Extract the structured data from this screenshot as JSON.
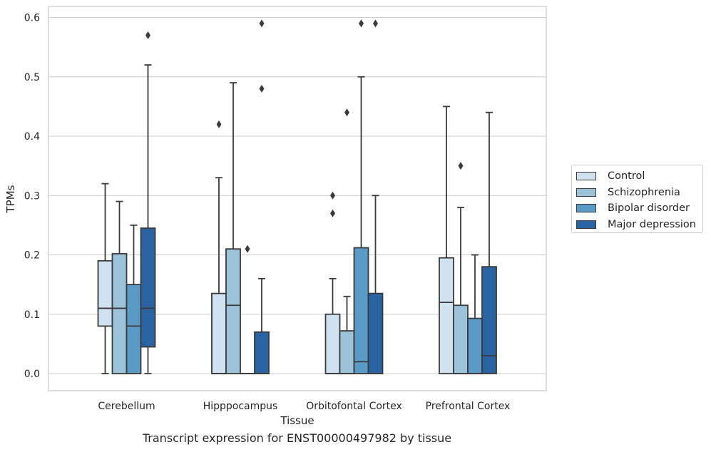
{
  "chart_data": {
    "type": "box",
    "title": "",
    "xlabel": "Tissue",
    "ylabel": "TPMs",
    "ylim": [
      -0.03,
      0.62
    ],
    "yticks": [
      "0.0",
      "0.1",
      "0.2",
      "0.3",
      "0.4",
      "0.5",
      "0.6"
    ],
    "ytick_values": [
      0.0,
      0.1,
      0.2,
      0.3,
      0.4,
      0.5,
      0.6
    ],
    "grid": true,
    "legend_position": "right",
    "categories": [
      "Cerebellum",
      "Hipppocampus",
      "Orbitofontal Cortex",
      "Prefrontal Cortex"
    ],
    "series": [
      {
        "name": "Control",
        "color": "#d0e1f0",
        "boxes": [
          {
            "q1": 0.08,
            "median": 0.11,
            "q3": 0.19,
            "whisker_low": 0.0,
            "whisker_high": 0.32,
            "outliers": []
          },
          {
            "q1": 0.0,
            "median": 0.0,
            "q3": 0.135,
            "whisker_low": 0.0,
            "whisker_high": 0.33,
            "outliers": [
              0.42
            ]
          },
          {
            "q1": 0.0,
            "median": 0.0,
            "q3": 0.1,
            "whisker_low": 0.0,
            "whisker_high": 0.16,
            "outliers": [
              0.27,
              0.3
            ]
          },
          {
            "q1": 0.0,
            "median": 0.12,
            "q3": 0.195,
            "whisker_low": 0.0,
            "whisker_high": 0.45,
            "outliers": []
          }
        ]
      },
      {
        "name": "Schizophrenia",
        "color": "#9dc3db",
        "boxes": [
          {
            "q1": 0.0,
            "median": 0.11,
            "q3": 0.202,
            "whisker_low": 0.0,
            "whisker_high": 0.29,
            "outliers": []
          },
          {
            "q1": 0.0,
            "median": 0.115,
            "q3": 0.21,
            "whisker_low": 0.0,
            "whisker_high": 0.49,
            "outliers": []
          },
          {
            "q1": 0.0,
            "median": 0.0,
            "q3": 0.072,
            "whisker_low": 0.0,
            "whisker_high": 0.13,
            "outliers": [
              0.44
            ]
          },
          {
            "q1": 0.0,
            "median": 0.0,
            "q3": 0.115,
            "whisker_low": 0.0,
            "whisker_high": 0.28,
            "outliers": [
              0.35
            ]
          }
        ]
      },
      {
        "name": "Bipolar disorder",
        "color": "#5a9ac7",
        "boxes": [
          {
            "q1": 0.0,
            "median": 0.08,
            "q3": 0.15,
            "whisker_low": 0.0,
            "whisker_high": 0.25,
            "outliers": []
          },
          {
            "q1": 0.0,
            "median": 0.0,
            "q3": 0.0,
            "whisker_low": 0.0,
            "whisker_high": 0.0,
            "outliers": [
              0.21
            ]
          },
          {
            "q1": 0.0,
            "median": 0.02,
            "q3": 0.212,
            "whisker_low": 0.0,
            "whisker_high": 0.5,
            "outliers": [
              0.59
            ]
          },
          {
            "q1": 0.0,
            "median": 0.0,
            "q3": 0.093,
            "whisker_low": 0.0,
            "whisker_high": 0.2,
            "outliers": []
          }
        ]
      },
      {
        "name": "Major depression",
        "color": "#2a63a1",
        "boxes": [
          {
            "q1": 0.045,
            "median": 0.11,
            "q3": 0.245,
            "whisker_low": 0.0,
            "whisker_high": 0.52,
            "outliers": [
              0.57
            ]
          },
          {
            "q1": 0.0,
            "median": 0.0,
            "q3": 0.07,
            "whisker_low": 0.0,
            "whisker_high": 0.16,
            "outliers": [
              0.48,
              0.59
            ]
          },
          {
            "q1": 0.0,
            "median": 0.0,
            "q3": 0.135,
            "whisker_low": 0.0,
            "whisker_high": 0.3,
            "outliers": [
              0.59
            ]
          },
          {
            "q1": 0.0,
            "median": 0.03,
            "q3": 0.18,
            "whisker_low": 0.0,
            "whisker_high": 0.44,
            "outliers": []
          }
        ]
      }
    ]
  },
  "caption": "Transcript expression for ENST00000497982 by tissue"
}
